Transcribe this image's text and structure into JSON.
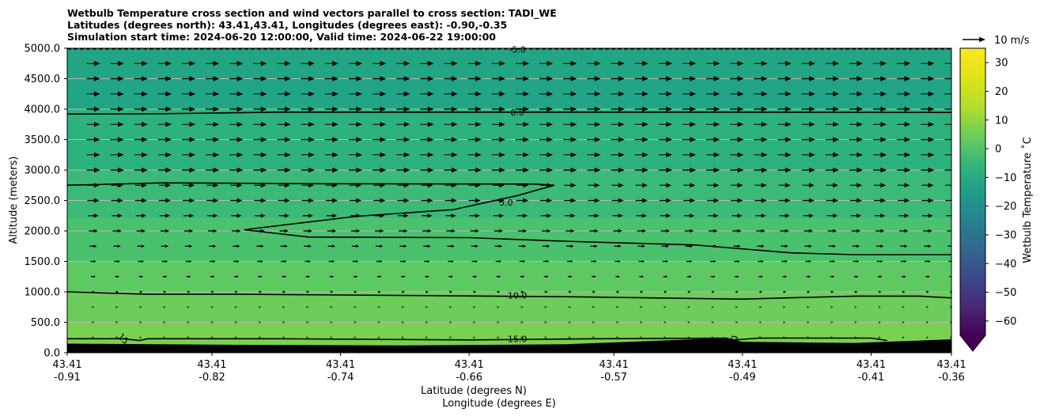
{
  "chart_data": {
    "type": "contour",
    "title_lines": [
      "Wetbulb Temperature cross section and wind vectors parallel to cross section: TADI_WE",
      "Latitudes (degrees north): 43.41,43.41, Longitudes (degrees east): -0.90,-0.35",
      "Simulation start time: 2024-06-20 12:00:00, Valid time: 2024-06-22 19:00:00"
    ],
    "ylabel": "Altitude (meters)",
    "xlabel_lines": [
      "Latitude (degrees N)",
      "Longitude (degrees E)"
    ],
    "ylim": [
      0,
      5000
    ],
    "yticks": [
      0,
      500,
      1000,
      1500,
      2000,
      2500,
      3000,
      3500,
      4000,
      4500,
      5000
    ],
    "ytick_labels": [
      "0.0",
      "500.0",
      "1000.0",
      "1500.0",
      "2000.0",
      "2500.0",
      "3000.0",
      "3500.0",
      "4000.0",
      "4500.0",
      "5000.0"
    ],
    "xlim": [
      -0.91,
      -0.36
    ],
    "xticks": [
      {
        "lat": "43.41",
        "lon": "-0.91",
        "x": -0.91
      },
      {
        "lat": "43.41",
        "lon": "-0.82",
        "x": -0.82
      },
      {
        "lat": "43.41",
        "lon": "-0.74",
        "x": -0.74
      },
      {
        "lat": "43.41",
        "lon": "-0.66",
        "x": -0.66
      },
      {
        "lat": "43.41",
        "lon": "-0.57",
        "x": -0.57
      },
      {
        "lat": "43.41",
        "lon": "-0.49",
        "x": -0.49
      },
      {
        "lat": "43.41",
        "lon": "-0.41",
        "x": -0.41
      },
      {
        "lat": "43.41",
        "lon": "-0.36",
        "x": -0.36
      }
    ],
    "grid": "horizontal",
    "colorbar": {
      "label": "Wetbulb Temperature $^\\circ$C",
      "label_display": "Wetbulb Temperature ˚C",
      "range": [
        -65,
        35
      ],
      "ticks": [
        30,
        20,
        10,
        0,
        -10,
        -20,
        -30,
        -40,
        -50,
        -60
      ],
      "tick_labels": [
        "30",
        "20",
        "10",
        "0",
        "−10",
        "−20",
        "−30",
        "−40",
        "−50",
        "−60"
      ],
      "colormap": "viridis",
      "extend": "min"
    },
    "quiver_key": {
      "label": "10 m/s",
      "speed": 10
    },
    "contour_lines": [
      {
        "level": -5.0,
        "label": "-5.0",
        "points": [
          [
            -0.91,
            4990
          ],
          [
            -0.36,
            4990
          ]
        ]
      },
      {
        "level": 0.0,
        "label": "0.0",
        "points": [
          [
            -0.91,
            3920
          ],
          [
            -0.85,
            3925
          ],
          [
            -0.78,
            3950
          ],
          [
            -0.66,
            3950
          ],
          [
            -0.5,
            3950
          ],
          [
            -0.36,
            3945
          ]
        ]
      },
      {
        "level": 5.0,
        "label": "5.0",
        "closed": false,
        "points": [
          [
            -0.91,
            2750
          ],
          [
            -0.85,
            2790
          ],
          [
            -0.75,
            2775
          ],
          [
            -0.62,
            2770
          ],
          [
            -0.607,
            2750
          ],
          [
            -0.63,
            2580
          ],
          [
            -0.67,
            2350
          ],
          [
            -0.73,
            2240
          ],
          [
            -0.8,
            2020
          ],
          [
            -0.76,
            1900
          ],
          [
            -0.66,
            1890
          ],
          [
            -0.6,
            1830
          ],
          [
            -0.52,
            1770
          ],
          [
            -0.46,
            1640
          ],
          [
            -0.42,
            1610
          ],
          [
            -0.36,
            1610
          ]
        ]
      },
      {
        "level": 10.0,
        "label": "10.0",
        "points": [
          [
            -0.91,
            1000
          ],
          [
            -0.86,
            960
          ],
          [
            -0.8,
            960
          ],
          [
            -0.7,
            940
          ],
          [
            -0.6,
            920
          ],
          [
            -0.49,
            880
          ],
          [
            -0.42,
            930
          ],
          [
            -0.38,
            930
          ],
          [
            -0.36,
            900
          ]
        ]
      },
      {
        "level": 15.0,
        "label": "15.0",
        "points": [
          [
            -0.91,
            230
          ],
          [
            -0.875,
            230
          ],
          [
            -0.865,
            200
          ],
          [
            -0.86,
            230
          ],
          [
            -0.78,
            230
          ],
          [
            -0.66,
            210
          ],
          [
            -0.58,
            230
          ],
          [
            -0.5,
            240
          ],
          [
            -0.5,
            200
          ],
          [
            -0.48,
            240
          ],
          [
            -0.41,
            240
          ],
          [
            -0.4,
            200
          ]
        ]
      }
    ],
    "contour_labels": [
      {
        "text": "-5.0",
        "x": -0.63,
        "y": 4980
      },
      {
        "text": "0.0",
        "x": -0.63,
        "y": 3950
      },
      {
        "text": "5.0",
        "x": -0.637,
        "y": 2470
      },
      {
        "text": "10.0",
        "x": -0.63,
        "y": 940
      },
      {
        "text": "15.0",
        "x": -0.63,
        "y": 230
      },
      {
        "text": "15",
        "x": -0.875,
        "y": 230
      },
      {
        "text": "0",
        "x": -0.495,
        "y": 240
      }
    ],
    "terrain": [
      [
        -0.91,
        150
      ],
      [
        -0.8,
        130
      ],
      [
        -0.7,
        120
      ],
      [
        -0.6,
        140
      ],
      [
        -0.52,
        220
      ],
      [
        -0.5,
        250
      ],
      [
        -0.49,
        180
      ],
      [
        -0.42,
        160
      ],
      [
        -0.38,
        200
      ],
      [
        -0.36,
        220
      ]
    ],
    "fill_bands": [
      {
        "from": 4000,
        "to": 5000,
        "color": "#21a585"
      },
      {
        "from": 3000,
        "to": 4000,
        "color": "#2db27d"
      },
      {
        "from": 2200,
        "to": 3000,
        "color": "#3aba76"
      },
      {
        "from": 1500,
        "to": 2200,
        "color": "#4ac16d"
      },
      {
        "from": 1000,
        "to": 1500,
        "color": "#5ec962"
      },
      {
        "from": 500,
        "to": 1000,
        "color": "#6ccd5a"
      },
      {
        "from": 0,
        "to": 500,
        "color": "#7ad151"
      }
    ],
    "wind": {
      "direction": "east",
      "levels_m": [
        4750,
        4500,
        4250,
        4000,
        3750,
        3500,
        3250,
        3000,
        2750,
        2500,
        2250,
        2000,
        1750,
        1500,
        1250,
        1000,
        750,
        500,
        250
      ],
      "speeds_ms": [
        9,
        9,
        9,
        9,
        9,
        9,
        9,
        9,
        8,
        8,
        7,
        6,
        5,
        4,
        3,
        2,
        1,
        1,
        0.5
      ]
    }
  }
}
